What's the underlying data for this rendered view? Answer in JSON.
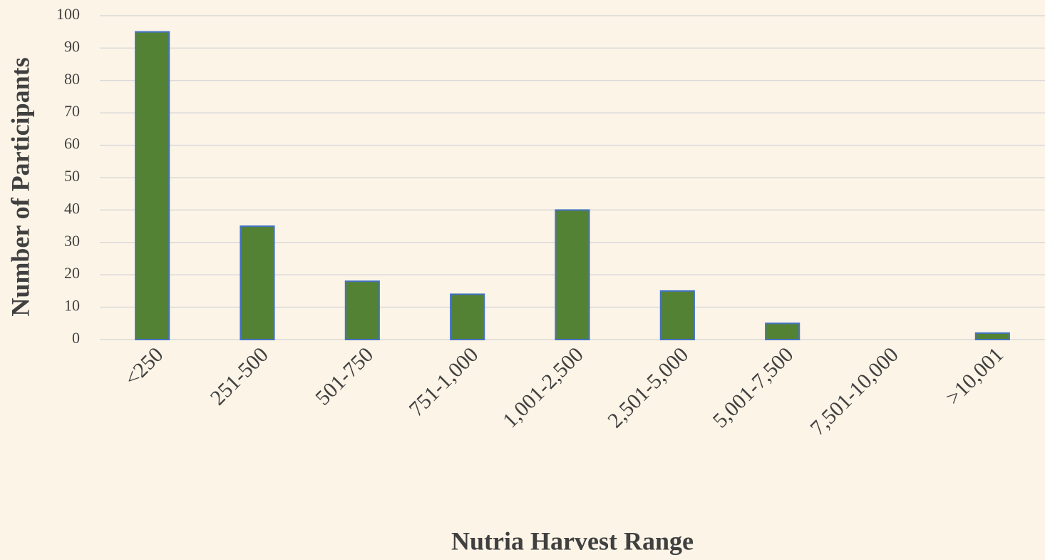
{
  "chart_data": {
    "type": "bar",
    "x_label": "Nutria Harvest Range",
    "y_label": "Number of Participants",
    "categories": [
      "<250",
      "251-500",
      "501-750",
      "751-1,000",
      "1,001-2,500",
      "2,501-5,000",
      "5,001-7,500",
      "7,501-10,000",
      ">10,001"
    ],
    "values": [
      95,
      35,
      18,
      14,
      40,
      15,
      5,
      0,
      2
    ],
    "color": "#548235",
    "ylim": [
      0,
      100
    ],
    "yticks": [
      0,
      10,
      20,
      30,
      40,
      50,
      60,
      70,
      80,
      90,
      100
    ],
    "grid": true
  }
}
